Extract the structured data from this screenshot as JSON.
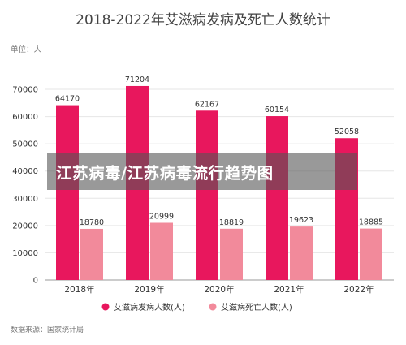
{
  "chart_data": {
    "type": "bar",
    "title": "2018-2022年艾滋病发病及死亡人数统计",
    "unit_label": "单位：人",
    "categories": [
      "2018年",
      "2019年",
      "2020年",
      "2021年",
      "2022年"
    ],
    "series": [
      {
        "name": "艾滋病发病人数(人)",
        "color": "#e8175d",
        "values": [
          64170,
          71204,
          62167,
          60154,
          52058
        ]
      },
      {
        "name": "艾滋病死亡人数(人)",
        "color": "#f28a9b",
        "values": [
          18780,
          20999,
          18819,
          19623,
          18885
        ]
      }
    ],
    "yticks": [
      "0",
      "10000",
      "20000",
      "30000",
      "40000",
      "50000",
      "60000",
      "70000"
    ],
    "ylim": [
      0,
      70000
    ],
    "grid": true,
    "legend_position": "bottom",
    "source": "数据来源：国家统计局"
  },
  "overlay": {
    "text": "江苏病毒/江苏病毒流行趋势图"
  }
}
